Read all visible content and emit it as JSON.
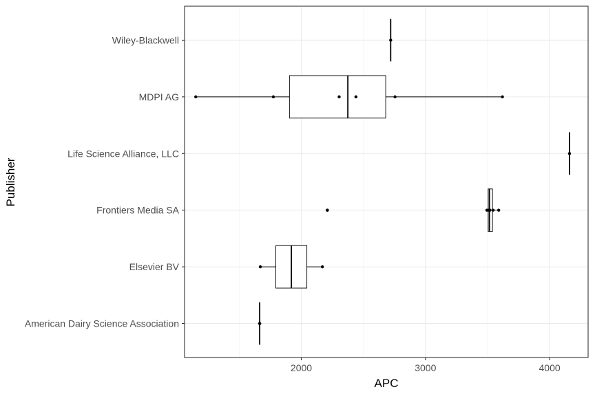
{
  "chart_data": {
    "type": "boxplot",
    "orientation": "horizontal",
    "xlabel": "APC",
    "ylabel": "Publisher",
    "xlim": [
      1060,
      4310
    ],
    "x_ticks": [
      2000,
      3000,
      4000
    ],
    "x_minor_ticks": [
      1500,
      2500,
      3500
    ],
    "grid": true,
    "categories": [
      "American Dairy Science Association",
      "Elsevier BV",
      "Frontiers Media SA",
      "Life Science Alliance, LLC",
      "MDPI AG",
      "Wiley-Blackwell"
    ],
    "boxes": [
      {
        "category": "American Dairy Science Association",
        "min": 1665,
        "q1": 1665,
        "median": 1665,
        "q3": 1665,
        "max": 1665,
        "points": [
          1665,
          1665
        ]
      },
      {
        "category": "Elsevier BV",
        "min": 1670,
        "q1": 1795,
        "median": 1920,
        "q3": 2045,
        "max": 2170,
        "points": [
          1670,
          2170
        ]
      },
      {
        "category": "Frontiers Media SA",
        "min": 3490,
        "q1": 3505,
        "median": 3515,
        "q3": 3540,
        "max": 3590,
        "outliers": [
          2210
        ],
        "points": [
          2210,
          3495,
          3510,
          3520,
          3545,
          3590
        ]
      },
      {
        "category": "Life Science Alliance, LLC",
        "min": 4160,
        "q1": 4160,
        "median": 4160,
        "q3": 4160,
        "max": 4160,
        "points": [
          4160
        ]
      },
      {
        "category": "MDPI AG",
        "min": 1150,
        "q1": 1905,
        "median": 2375,
        "q3": 2680,
        "max": 3620,
        "points": [
          1150,
          1775,
          2305,
          2440,
          2755,
          3620
        ]
      },
      {
        "category": "Wiley-Blackwell",
        "min": 2720,
        "q1": 2720,
        "median": 2720,
        "q3": 2720,
        "max": 2720,
        "points": [
          2720
        ]
      }
    ]
  }
}
